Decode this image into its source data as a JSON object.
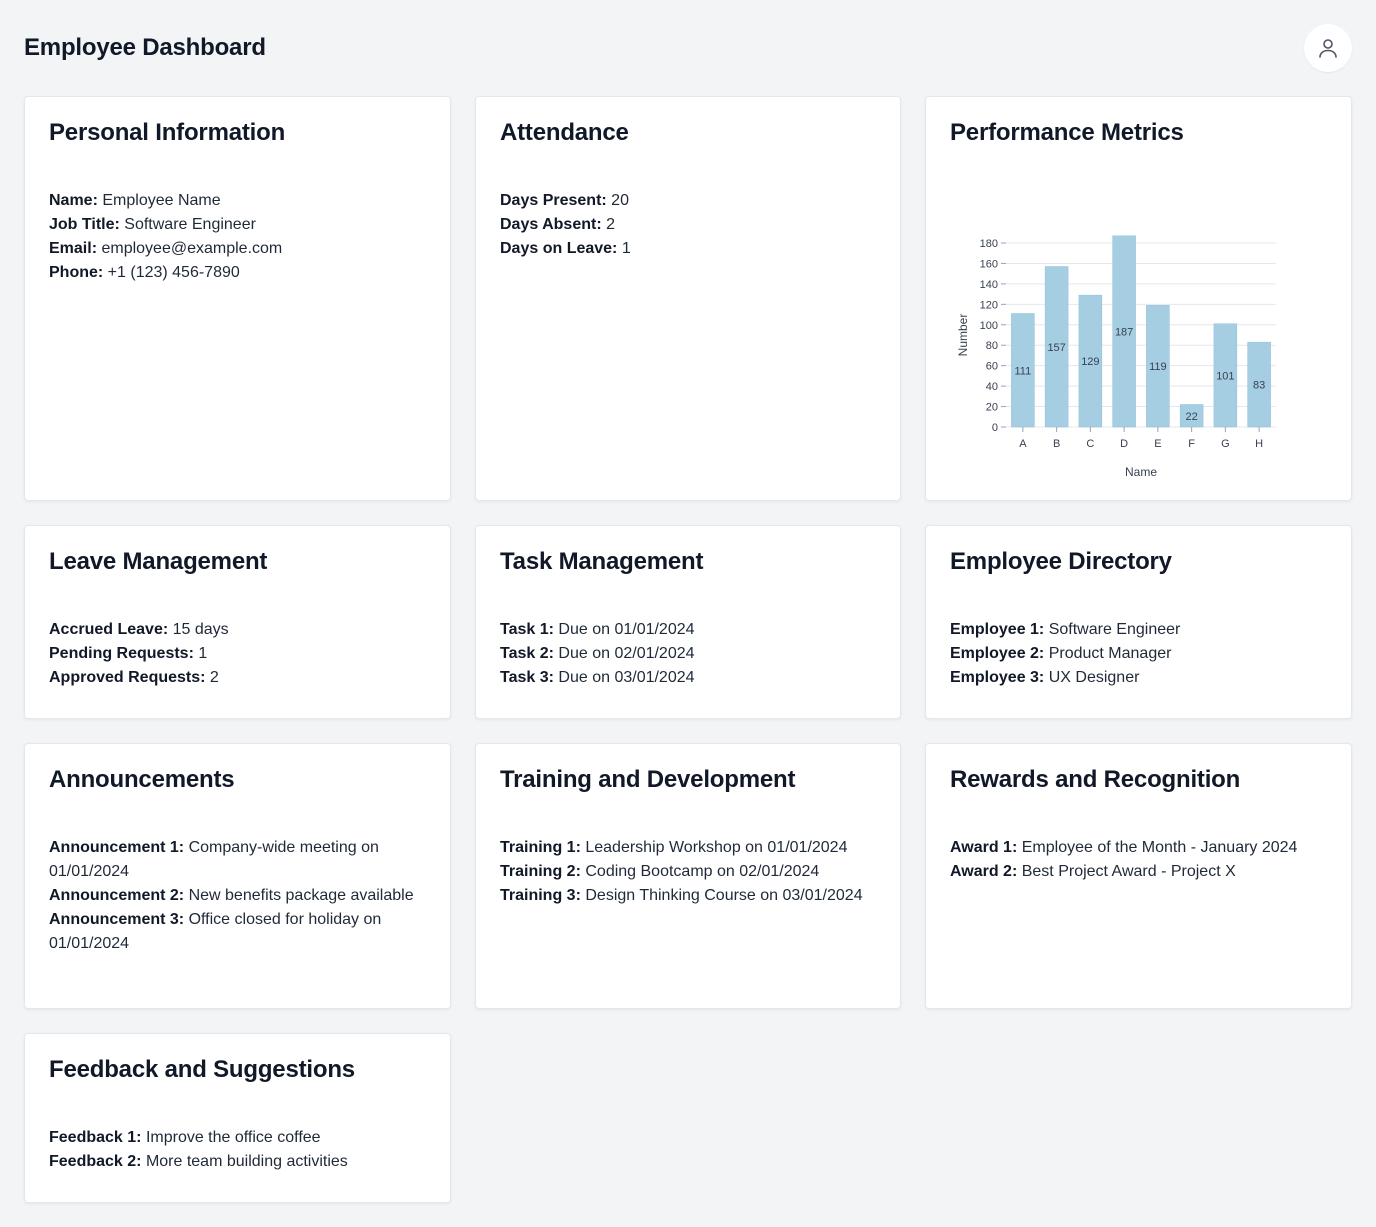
{
  "header": {
    "title": "Employee Dashboard",
    "profile_icon": "user-icon"
  },
  "personal": {
    "title": "Personal Information",
    "rows": [
      {
        "label": "Name:",
        "value": "Employee Name"
      },
      {
        "label": "Job Title:",
        "value": "Software Engineer"
      },
      {
        "label": "Email:",
        "value": "employee@example.com"
      },
      {
        "label": "Phone:",
        "value": "+1 (123) 456-7890"
      }
    ]
  },
  "attendance": {
    "title": "Attendance",
    "rows": [
      {
        "label": "Days Present:",
        "value": "20"
      },
      {
        "label": "Days Absent:",
        "value": "2"
      },
      {
        "label": "Days on Leave:",
        "value": "1"
      }
    ]
  },
  "performance": {
    "title": "Performance Metrics"
  },
  "leave": {
    "title": "Leave Management",
    "rows": [
      {
        "label": "Accrued Leave:",
        "value": "15 days"
      },
      {
        "label": "Pending Requests:",
        "value": "1"
      },
      {
        "label": "Approved Requests:",
        "value": "2"
      }
    ]
  },
  "tasks": {
    "title": "Task Management",
    "rows": [
      {
        "label": "Task 1:",
        "value": "Due on 01/01/2024"
      },
      {
        "label": "Task 2:",
        "value": "Due on 02/01/2024"
      },
      {
        "label": "Task 3:",
        "value": "Due on 03/01/2024"
      }
    ]
  },
  "directory": {
    "title": "Employee Directory",
    "rows": [
      {
        "label": "Employee 1:",
        "value": "Software Engineer"
      },
      {
        "label": "Employee 2:",
        "value": "Product Manager"
      },
      {
        "label": "Employee 3:",
        "value": "UX Designer"
      }
    ]
  },
  "announcements": {
    "title": "Announcements",
    "rows": [
      {
        "label": "Announcement 1:",
        "value": "Company-wide meeting on 01/01/2024"
      },
      {
        "label": "Announcement 2:",
        "value": "New benefits package available"
      },
      {
        "label": "Announcement 3:",
        "value": "Office closed for holiday on 01/01/2024"
      }
    ]
  },
  "training": {
    "title": "Training and Development",
    "rows": [
      {
        "label": "Training 1:",
        "value": "Leadership Workshop on 01/01/2024"
      },
      {
        "label": "Training 2:",
        "value": "Coding Bootcamp on 02/01/2024"
      },
      {
        "label": "Training 3:",
        "value": "Design Thinking Course on 03/01/2024"
      }
    ]
  },
  "rewards": {
    "title": "Rewards and Recognition",
    "rows": [
      {
        "label": "Award 1:",
        "value": "Employee of the Month - January 2024"
      },
      {
        "label": "Award 2:",
        "value": "Best Project Award - Project X"
      }
    ]
  },
  "feedback": {
    "title": "Feedback and Suggestions",
    "rows": [
      {
        "label": "Feedback 1:",
        "value": "Improve the office coffee"
      },
      {
        "label": "Feedback 2:",
        "value": "More team building activities"
      }
    ]
  },
  "chart_data": {
    "type": "bar",
    "categories": [
      "A",
      "B",
      "C",
      "D",
      "E",
      "F",
      "G",
      "H"
    ],
    "values": [
      111,
      157,
      129,
      187,
      119,
      22,
      101,
      83
    ],
    "xlabel": "Name",
    "ylabel": "Number",
    "ylim": [
      0,
      180
    ],
    "yticks": [
      0,
      20,
      40,
      60,
      80,
      100,
      120,
      140,
      160,
      180
    ],
    "grid": true,
    "bar_color": "#a6cee3"
  }
}
